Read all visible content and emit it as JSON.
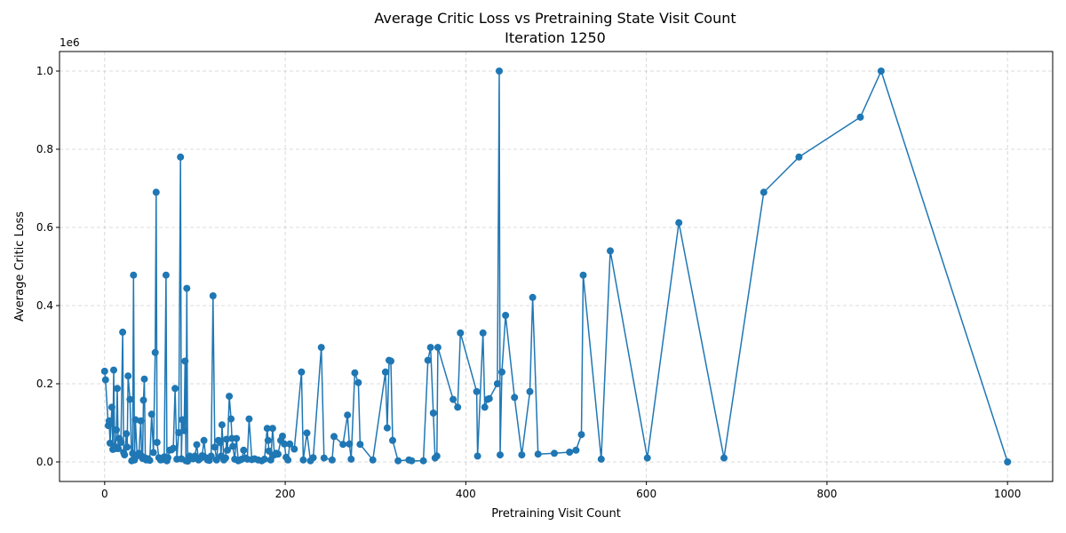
{
  "chart_data": {
    "type": "line",
    "title": "Average Critic Loss vs Pretraining State Visit Count",
    "subtitle": "Iteration 1250",
    "xlabel": "Pretraining Visit Count",
    "ylabel": "Average Critic Loss",
    "y_offset_label": "1e6",
    "xlim": [
      -50,
      1050
    ],
    "ylim": [
      -50000,
      1050000
    ],
    "x_ticks": [
      0,
      200,
      400,
      600,
      800,
      1000
    ],
    "x_tick_labels": [
      "0",
      "200",
      "400",
      "600",
      "800",
      "1000"
    ],
    "y_ticks": [
      0,
      200000,
      400000,
      600000,
      800000,
      1000000
    ],
    "y_tick_labels": [
      "0.0",
      "0.2",
      "0.4",
      "0.6",
      "0.8",
      "1.0"
    ],
    "grid": true,
    "marker": "circle",
    "color": "#1f77b4",
    "series": [
      {
        "x": [
          0,
          1,
          4,
          5,
          6,
          8,
          9,
          10,
          11,
          12,
          13,
          14,
          15,
          16,
          18,
          20,
          21,
          22,
          24,
          25,
          26,
          28,
          30,
          31,
          32,
          33,
          34,
          36,
          38,
          40,
          41,
          42,
          43,
          44,
          45,
          46,
          48,
          50,
          52,
          54,
          56,
          57,
          58,
          60,
          62,
          64,
          66,
          68,
          69,
          70,
          72,
          74,
          76,
          78,
          80,
          82,
          84,
          85,
          86,
          88,
          89,
          90,
          91,
          92,
          94,
          96,
          98,
          100,
          102,
          104,
          106,
          108,
          110,
          112,
          114,
          116,
          118,
          120,
          122,
          124,
          126,
          128,
          129,
          130,
          132,
          134,
          135,
          136,
          138,
          140,
          141,
          142,
          144,
          146,
          148,
          150,
          152,
          154,
          156,
          158,
          160,
          163,
          166,
          170,
          174,
          177,
          180,
          181,
          182,
          184,
          186,
          188,
          190,
          192,
          195,
          197,
          199,
          201,
          203,
          205,
          210,
          218,
          220,
          224,
          228,
          231,
          240,
          243,
          252,
          254,
          264,
          269,
          271,
          273,
          277,
          281,
          283,
          297,
          311,
          313,
          315,
          317,
          319,
          325,
          337,
          340,
          353,
          358,
          361,
          364,
          366,
          368,
          369,
          386,
          391,
          394,
          412,
          413,
          419,
          421,
          424,
          426,
          435,
          437,
          438,
          440,
          444,
          454,
          462,
          471,
          474,
          480,
          498,
          515,
          522,
          528,
          530,
          550,
          560,
          601,
          636,
          686,
          730,
          769,
          837,
          860,
          1000
        ],
        "y": [
          232000,
          210000,
          93000,
          105000,
          48000,
          140000,
          32000,
          235000,
          40000,
          34000,
          82000,
          188000,
          34000,
          60000,
          50000,
          332000,
          24000,
          18000,
          72000,
          38000,
          220000,
          160000,
          3000,
          22000,
          478000,
          5000,
          108000,
          16000,
          22000,
          105000,
          15000,
          9000,
          158000,
          212000,
          10000,
          5000,
          8000,
          4000,
          122000,
          24000,
          280000,
          690000,
          50000,
          11000,
          5000,
          6000,
          13000,
          478000,
          3000,
          11000,
          30000,
          31000,
          35000,
          188000,
          7000,
          75000,
          780000,
          8000,
          108000,
          80000,
          258000,
          3000,
          444000,
          2000,
          15000,
          11000,
          8000,
          15000,
          44000,
          5000,
          9000,
          16000,
          55000,
          11000,
          5000,
          4000,
          15000,
          425000,
          38000,
          5000,
          55000,
          50000,
          15000,
          95000,
          5000,
          10000,
          58000,
          30000,
          168000,
          110000,
          60000,
          40000,
          7000,
          60000,
          3000,
          5000,
          7000,
          30000,
          10000,
          7000,
          110000,
          6000,
          8000,
          5000,
          3000,
          7000,
          86000,
          55000,
          28000,
          5000,
          86000,
          18000,
          22000,
          20000,
          55000,
          66000,
          46000,
          12000,
          5000,
          46000,
          33000,
          230000,
          5000,
          74000,
          3000,
          11000,
          293000,
          10000,
          5000,
          65000,
          45000,
          120000,
          46000,
          7000,
          228000,
          203000,
          45000,
          5000,
          230000,
          87000,
          260000,
          258000,
          55000,
          3000,
          5000,
          3000,
          3000,
          260000,
          293000,
          125000,
          10000,
          15000,
          293000,
          160000,
          140000,
          330000,
          180000,
          15000,
          330000,
          140000,
          160000,
          162000,
          200000,
          1000000,
          18000,
          230000,
          375000,
          165000,
          18000,
          180000,
          421000,
          20000,
          22000,
          25000,
          30000,
          70000,
          478000,
          7000,
          540000,
          10000,
          612000,
          10000,
          690000,
          780000,
          882000,
          1000000,
          0
        ]
      }
    ]
  }
}
